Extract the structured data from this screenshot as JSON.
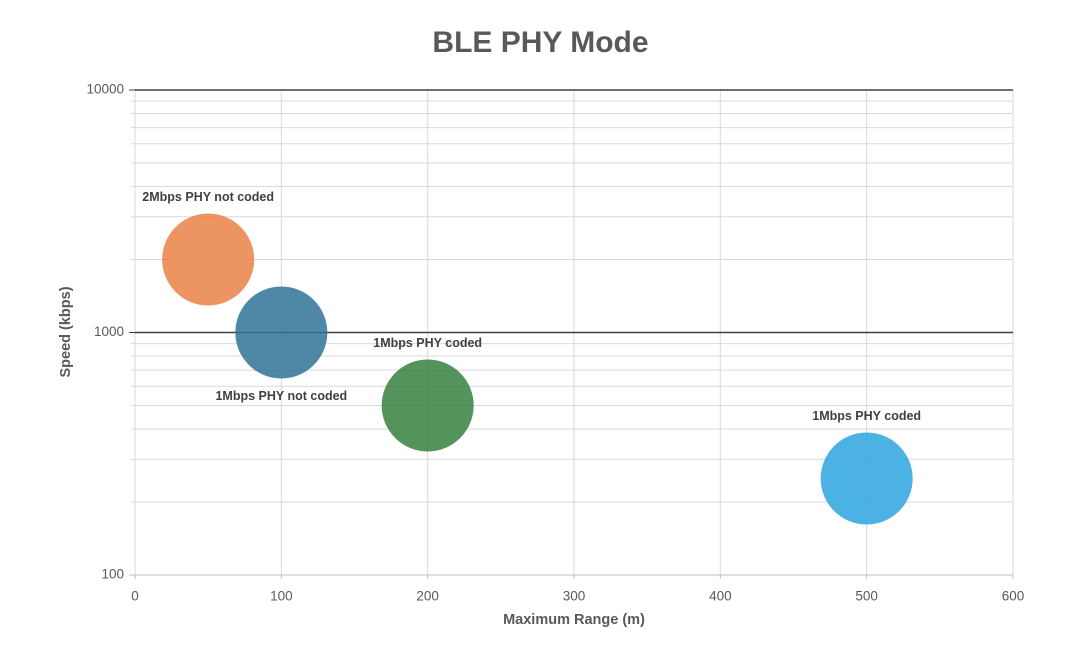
{
  "chart_data": {
    "type": "scatter",
    "subtype": "bubble",
    "title": "BLE PHY Mode",
    "xlabel": "Maximum Range (m)",
    "ylabel": "Speed (kbps)",
    "x_scale": "linear",
    "y_scale": "log",
    "xlim": [
      0,
      600
    ],
    "ylim": [
      100,
      10000
    ],
    "x_ticks": [
      0,
      100,
      200,
      300,
      400,
      500,
      600
    ],
    "y_ticks": [
      100,
      1000,
      10000
    ],
    "grid": true,
    "legend": "none",
    "series": [
      {
        "name": "2Mbps PHY not coded",
        "x": 50,
        "y": 2000,
        "color": "#E98147",
        "label_position": "above"
      },
      {
        "name": "1Mbps PHY not coded",
        "x": 100,
        "y": 1000,
        "color": "#2F7396",
        "label_position": "below"
      },
      {
        "name": "1Mbps PHY coded",
        "x": 200,
        "y": 500,
        "color": "#378040",
        "label_position": "above"
      },
      {
        "name": "1Mbps PHY coded",
        "x": 500,
        "y": 250,
        "color": "#2BA5DE",
        "label_position": "above"
      }
    ],
    "colors": {
      "title": "#595959",
      "axis_title": "#595959",
      "tick_label": "#595959",
      "data_label": "#404040",
      "major_grid": "#404040",
      "minor_grid": "#D9D9D9",
      "axis_line": "#BFBFBF"
    }
  }
}
